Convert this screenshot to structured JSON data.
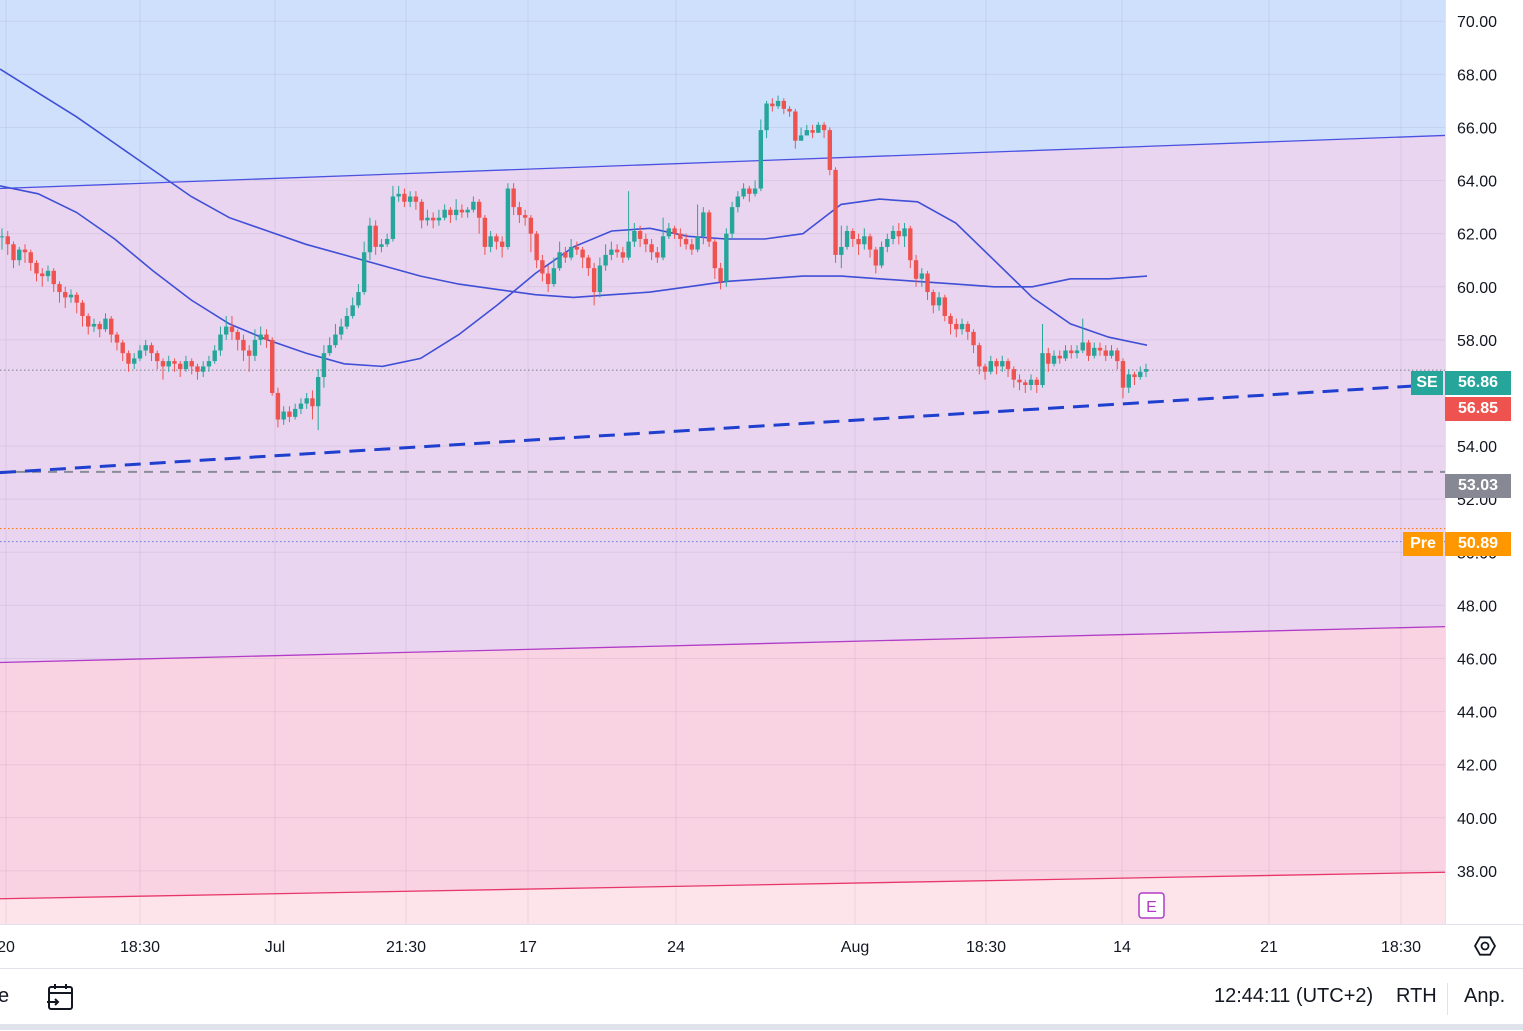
{
  "chart_data": {
    "type": "candlestick",
    "y_axis": {
      "ylim": [
        36.0,
        70.8
      ],
      "ticks": [
        "70.00",
        "68.00",
        "66.00",
        "64.00",
        "62.00",
        "60.00",
        "58.00",
        "54.00",
        "52.00",
        "50.00",
        "48.00",
        "46.00",
        "44.00",
        "42.00",
        "40.00",
        "38.00"
      ]
    },
    "x_axis": {
      "ticks": [
        "20",
        "18:30",
        "Jul",
        "21:30",
        "17",
        "24",
        "Aug",
        "18:30",
        "14",
        "21",
        "18:30"
      ]
    },
    "grid": true,
    "bands": [
      {
        "name": "upper-zone",
        "color": "#cfe0fd"
      },
      {
        "name": "middle-zone",
        "color": "#ead5f0"
      },
      {
        "name": "lower-zone",
        "color": "#f9d3e1"
      },
      {
        "name": "bottom-zone",
        "color": "#fce4ea"
      }
    ],
    "channel_lines": [
      {
        "name": "upper",
        "color": "#4a52e0",
        "start": 63.7,
        "end": 65.7
      },
      {
        "name": "middle",
        "color": "#b03cc8",
        "start": 45.85,
        "end": 47.2
      },
      {
        "name": "lower",
        "color": "#e8366b",
        "start": 36.95,
        "end": 37.95
      }
    ],
    "trendline_dashed": {
      "color": "#1f3fcf",
      "start": 53.0,
      "end": 56.3
    },
    "horizontal_lines": [
      {
        "name": "gray-dashed",
        "value": 53.03,
        "color": "#8a8d97"
      },
      {
        "name": "pre-dotted",
        "value": 50.89,
        "color": "#ff6d00"
      },
      {
        "name": "blue-dotted",
        "value": 50.4,
        "color": "#6b7bd6"
      },
      {
        "name": "last-dotted",
        "value": 56.86,
        "color": "#7a7d85"
      }
    ],
    "candles": [
      [
        61.9,
        61.9,
        62.2,
        61.4
      ],
      [
        61.9,
        61.6,
        62.1,
        61.2
      ],
      [
        61.6,
        61.0,
        61.7,
        60.7
      ],
      [
        61.0,
        61.4,
        61.5,
        60.8
      ],
      [
        61.4,
        61.3,
        61.6,
        60.9
      ],
      [
        61.3,
        60.9,
        61.4,
        60.6
      ],
      [
        60.9,
        60.5,
        61.0,
        60.2
      ],
      [
        60.5,
        60.4,
        60.7,
        60.0
      ],
      [
        60.4,
        60.6,
        60.8,
        60.2
      ],
      [
        60.6,
        60.1,
        60.7,
        59.8
      ],
      [
        60.1,
        59.8,
        60.2,
        59.4
      ],
      [
        59.8,
        59.6,
        60.0,
        59.2
      ],
      [
        59.6,
        59.7,
        59.9,
        59.4
      ],
      [
        59.7,
        59.4,
        59.8,
        59.0
      ],
      [
        59.4,
        58.9,
        59.5,
        58.5
      ],
      [
        58.9,
        58.5,
        59.0,
        58.2
      ],
      [
        58.5,
        58.6,
        58.8,
        58.3
      ],
      [
        58.6,
        58.4,
        58.7,
        58.1
      ],
      [
        58.4,
        58.8,
        59.0,
        58.3
      ],
      [
        58.8,
        58.2,
        58.9,
        57.9
      ],
      [
        58.2,
        57.9,
        58.3,
        57.6
      ],
      [
        57.9,
        57.5,
        58.0,
        57.2
      ],
      [
        57.5,
        57.1,
        57.6,
        56.8
      ],
      [
        57.1,
        57.3,
        57.5,
        56.9
      ],
      [
        57.3,
        57.6,
        57.8,
        57.2
      ],
      [
        57.6,
        57.8,
        58.0,
        57.4
      ],
      [
        57.8,
        57.5,
        57.9,
        57.2
      ],
      [
        57.5,
        57.2,
        57.6,
        56.9
      ],
      [
        57.2,
        57.0,
        57.3,
        56.5
      ],
      [
        57.0,
        57.2,
        57.4,
        56.8
      ],
      [
        57.2,
        57.1,
        57.3,
        56.8
      ],
      [
        57.1,
        56.9,
        57.2,
        56.6
      ],
      [
        56.9,
        57.2,
        57.4,
        56.8
      ],
      [
        57.2,
        57.0,
        57.3,
        56.7
      ],
      [
        57.0,
        56.8,
        57.1,
        56.5
      ],
      [
        56.8,
        57.0,
        57.2,
        56.6
      ],
      [
        57.0,
        57.2,
        57.4,
        56.8
      ],
      [
        57.2,
        57.6,
        57.8,
        57.1
      ],
      [
        57.6,
        58.2,
        58.5,
        57.4
      ],
      [
        58.2,
        58.5,
        58.9,
        58.0
      ],
      [
        58.5,
        58.3,
        58.9,
        58.0
      ],
      [
        58.3,
        58.0,
        58.4,
        57.6
      ],
      [
        58.0,
        57.6,
        58.2,
        57.2
      ],
      [
        57.6,
        57.4,
        57.8,
        56.8
      ],
      [
        57.4,
        58.0,
        58.4,
        57.2
      ],
      [
        58.0,
        58.2,
        58.5,
        57.8
      ],
      [
        58.2,
        58.0,
        58.4,
        57.7
      ],
      [
        58.0,
        56.0,
        58.1,
        55.9
      ],
      [
        56.0,
        55.0,
        56.2,
        54.7
      ],
      [
        55.0,
        55.3,
        55.5,
        54.8
      ],
      [
        55.3,
        55.1,
        55.5,
        54.9
      ],
      [
        55.1,
        55.4,
        55.6,
        55.0
      ],
      [
        55.4,
        55.6,
        55.8,
        55.2
      ],
      [
        55.6,
        55.8,
        56.0,
        55.4
      ],
      [
        55.8,
        55.5,
        56.1,
        55.0
      ],
      [
        55.5,
        56.6,
        56.9,
        54.6
      ],
      [
        56.6,
        57.5,
        57.8,
        56.2
      ],
      [
        57.5,
        57.8,
        58.1,
        57.4
      ],
      [
        57.8,
        58.2,
        58.6,
        57.7
      ],
      [
        58.2,
        58.5,
        58.8,
        58.0
      ],
      [
        58.5,
        58.9,
        59.2,
        58.4
      ],
      [
        58.9,
        59.3,
        59.6,
        58.8
      ],
      [
        59.3,
        59.8,
        60.1,
        59.2
      ],
      [
        59.8,
        61.3,
        61.7,
        59.7
      ],
      [
        61.3,
        62.3,
        62.6,
        61.0
      ],
      [
        62.3,
        61.5,
        62.5,
        61.2
      ],
      [
        61.5,
        61.6,
        61.8,
        61.3
      ],
      [
        61.6,
        61.8,
        62.0,
        61.5
      ],
      [
        61.8,
        63.4,
        63.8,
        61.7
      ],
      [
        63.4,
        63.5,
        63.8,
        63.2
      ],
      [
        63.5,
        63.2,
        63.7,
        63.0
      ],
      [
        63.2,
        63.4,
        63.6,
        63.0
      ],
      [
        63.4,
        63.2,
        63.6,
        62.9
      ],
      [
        63.2,
        62.5,
        63.3,
        62.2
      ],
      [
        62.5,
        62.6,
        62.9,
        62.3
      ],
      [
        62.6,
        62.5,
        62.8,
        62.2
      ],
      [
        62.5,
        62.6,
        62.9,
        62.3
      ],
      [
        62.6,
        62.9,
        63.1,
        62.5
      ],
      [
        62.9,
        62.7,
        63.0,
        62.4
      ],
      [
        62.7,
        62.9,
        63.3,
        62.5
      ],
      [
        62.9,
        62.8,
        63.1,
        62.6
      ],
      [
        62.8,
        62.9,
        63.0,
        62.6
      ],
      [
        62.9,
        63.2,
        63.4,
        62.8
      ],
      [
        63.2,
        62.6,
        63.3,
        62.0
      ],
      [
        62.6,
        61.5,
        62.7,
        61.2
      ],
      [
        61.5,
        61.9,
        62.1,
        61.3
      ],
      [
        61.9,
        61.7,
        62.0,
        61.4
      ],
      [
        61.7,
        61.5,
        61.9,
        61.1
      ],
      [
        61.5,
        63.7,
        63.9,
        61.4
      ],
      [
        63.7,
        63.0,
        63.9,
        62.7
      ],
      [
        63.0,
        62.7,
        63.2,
        62.4
      ],
      [
        62.7,
        62.6,
        62.9,
        62.3
      ],
      [
        62.6,
        62.0,
        62.7,
        61.3
      ],
      [
        62.0,
        61.0,
        62.1,
        60.7
      ],
      [
        61.0,
        60.5,
        61.2,
        60.2
      ],
      [
        60.5,
        60.1,
        60.8,
        59.8
      ],
      [
        60.1,
        60.7,
        61.1,
        60.0
      ],
      [
        60.7,
        61.3,
        61.7,
        60.6
      ],
      [
        61.3,
        61.1,
        61.5,
        60.9
      ],
      [
        61.1,
        61.5,
        61.8,
        61.0
      ],
      [
        61.5,
        61.4,
        61.7,
        61.2
      ],
      [
        61.4,
        61.1,
        61.5,
        60.7
      ],
      [
        61.1,
        60.7,
        61.2,
        60.4
      ],
      [
        60.7,
        59.8,
        60.9,
        59.3
      ],
      [
        59.8,
        60.8,
        61.1,
        59.6
      ],
      [
        60.8,
        61.2,
        61.6,
        60.6
      ],
      [
        61.2,
        61.4,
        61.7,
        61.0
      ],
      [
        61.4,
        61.3,
        61.6,
        61.1
      ],
      [
        61.3,
        61.1,
        61.5,
        60.9
      ],
      [
        61.1,
        61.7,
        63.6,
        61.0
      ],
      [
        61.7,
        62.1,
        62.4,
        61.5
      ],
      [
        62.1,
        61.8,
        62.3,
        61.5
      ],
      [
        61.8,
        61.6,
        62.0,
        61.3
      ],
      [
        61.6,
        61.3,
        61.8,
        61.0
      ],
      [
        61.3,
        61.1,
        61.5,
        60.9
      ],
      [
        61.1,
        61.9,
        62.6,
        61.0
      ],
      [
        61.9,
        62.2,
        62.4,
        61.8
      ],
      [
        62.2,
        62.0,
        62.3,
        61.8
      ],
      [
        62.0,
        61.8,
        62.2,
        61.5
      ],
      [
        61.8,
        61.6,
        62.0,
        61.4
      ],
      [
        61.6,
        61.4,
        61.8,
        61.2
      ],
      [
        61.4,
        61.9,
        63.1,
        61.3
      ],
      [
        61.9,
        62.8,
        63.0,
        61.6
      ],
      [
        62.8,
        61.7,
        62.9,
        61.5
      ],
      [
        61.7,
        60.7,
        61.8,
        60.3
      ],
      [
        60.7,
        60.2,
        60.9,
        59.9
      ],
      [
        60.2,
        62.0,
        62.2,
        60.0
      ],
      [
        62.0,
        63.0,
        63.2,
        61.8
      ],
      [
        63.0,
        63.4,
        63.6,
        62.8
      ],
      [
        63.4,
        63.7,
        63.9,
        63.3
      ],
      [
        63.7,
        63.5,
        63.8,
        63.2
      ],
      [
        63.5,
        63.7,
        64.0,
        63.4
      ],
      [
        63.7,
        65.9,
        66.3,
        63.6
      ],
      [
        65.9,
        66.9,
        67.0,
        65.6
      ],
      [
        66.9,
        66.8,
        67.1,
        66.6
      ],
      [
        66.8,
        67.0,
        67.2,
        66.7
      ],
      [
        67.0,
        66.7,
        67.1,
        66.5
      ],
      [
        66.7,
        66.6,
        66.8,
        66.4
      ],
      [
        66.6,
        65.5,
        66.7,
        65.2
      ],
      [
        65.5,
        65.7,
        66.0,
        65.5
      ],
      [
        65.7,
        65.9,
        66.1,
        65.7
      ],
      [
        65.9,
        65.8,
        66.1,
        65.6
      ],
      [
        65.8,
        66.1,
        66.2,
        65.8
      ],
      [
        66.1,
        65.9,
        66.2,
        65.6
      ],
      [
        65.9,
        64.4,
        66.0,
        64.2
      ],
      [
        64.4,
        61.2,
        64.5,
        60.9
      ],
      [
        61.2,
        61.5,
        62.3,
        60.7
      ],
      [
        61.5,
        62.1,
        62.3,
        61.4
      ],
      [
        62.1,
        61.8,
        62.2,
        61.5
      ],
      [
        61.8,
        61.6,
        62.0,
        61.2
      ],
      [
        61.6,
        61.9,
        62.2,
        61.4
      ],
      [
        61.9,
        61.4,
        62.0,
        61.1
      ],
      [
        61.4,
        60.8,
        61.5,
        60.5
      ],
      [
        60.8,
        61.5,
        61.7,
        60.7
      ],
      [
        61.5,
        61.8,
        62.0,
        61.3
      ],
      [
        61.8,
        62.1,
        62.3,
        61.6
      ],
      [
        62.1,
        61.9,
        62.4,
        61.6
      ],
      [
        61.9,
        62.2,
        62.4,
        61.5
      ],
      [
        62.2,
        61.0,
        62.3,
        60.7
      ],
      [
        61.0,
        60.3,
        61.2,
        60.0
      ],
      [
        60.3,
        60.5,
        60.7,
        60.0
      ],
      [
        60.5,
        59.8,
        60.6,
        59.5
      ],
      [
        59.8,
        59.3,
        59.9,
        59.0
      ],
      [
        59.3,
        59.6,
        59.8,
        59.1
      ],
      [
        59.6,
        58.9,
        59.7,
        58.7
      ],
      [
        58.9,
        58.6,
        59.0,
        58.2
      ],
      [
        58.6,
        58.4,
        58.8,
        58.1
      ],
      [
        58.4,
        58.6,
        58.8,
        58.2
      ],
      [
        58.6,
        58.3,
        58.7,
        58.0
      ],
      [
        58.3,
        57.8,
        58.4,
        57.5
      ],
      [
        57.8,
        57.0,
        57.9,
        56.7
      ],
      [
        57.0,
        56.8,
        57.1,
        56.5
      ],
      [
        56.8,
        57.2,
        57.4,
        56.7
      ],
      [
        57.2,
        57.0,
        57.3,
        56.7
      ],
      [
        57.0,
        57.2,
        57.4,
        56.8
      ],
      [
        57.2,
        56.9,
        57.3,
        56.6
      ],
      [
        56.9,
        56.5,
        57.0,
        56.2
      ],
      [
        56.5,
        56.4,
        56.7,
        56.1
      ],
      [
        56.4,
        56.3,
        56.5,
        56.0
      ],
      [
        56.3,
        56.5,
        56.7,
        56.1
      ],
      [
        56.5,
        56.3,
        56.6,
        56.0
      ],
      [
        56.3,
        57.5,
        58.6,
        56.2
      ],
      [
        57.5,
        57.1,
        57.7,
        56.8
      ],
      [
        57.1,
        57.4,
        57.6,
        57.0
      ],
      [
        57.4,
        57.3,
        57.6,
        57.1
      ],
      [
        57.3,
        57.6,
        57.8,
        57.2
      ],
      [
        57.6,
        57.5,
        57.8,
        57.3
      ],
      [
        57.5,
        57.6,
        57.8,
        57.3
      ],
      [
        57.6,
        57.9,
        58.8,
        57.5
      ],
      [
        57.9,
        57.4,
        58.0,
        57.2
      ],
      [
        57.4,
        57.7,
        57.9,
        57.3
      ],
      [
        57.7,
        57.6,
        57.9,
        57.4
      ],
      [
        57.6,
        57.4,
        57.8,
        57.2
      ],
      [
        57.4,
        57.6,
        57.8,
        57.3
      ],
      [
        57.6,
        57.2,
        57.7,
        56.9
      ],
      [
        57.2,
        56.2,
        57.3,
        55.8
      ],
      [
        56.2,
        56.7,
        56.9,
        56.0
      ],
      [
        56.7,
        56.6,
        56.8,
        56.3
      ],
      [
        56.6,
        56.8,
        57.0,
        56.5
      ],
      [
        56.8,
        56.9,
        57.1,
        56.6
      ]
    ],
    "ma_long": [
      68.2,
      67.3,
      66.4,
      65.4,
      64.4,
      63.4,
      62.6,
      62.1,
      61.6,
      61.2,
      60.8,
      60.4,
      60.1,
      59.9,
      59.7,
      59.6,
      59.7,
      59.8,
      60.0,
      60.2,
      60.3,
      60.4,
      60.4,
      60.3,
      60.2,
      60.1,
      60.0,
      60.0,
      60.3,
      60.3,
      60.4
    ],
    "ma_short": [
      63.8,
      63.5,
      62.8,
      61.8,
      60.6,
      59.5,
      58.6,
      58.0,
      57.5,
      57.1,
      57.0,
      57.3,
      58.2,
      59.3,
      60.5,
      61.5,
      62.1,
      62.2,
      61.9,
      61.8,
      61.8,
      62.0,
      63.1,
      63.3,
      63.2,
      62.4,
      61.0,
      59.6,
      58.6,
      58.1,
      57.8
    ]
  },
  "price_tags": {
    "se_label": "SE",
    "last_price": "56.86",
    "close_price": "56.85",
    "line_price": "53.03",
    "pre_label": "Pre",
    "pre_price": "50.89"
  },
  "event_marker": {
    "label": "E"
  },
  "bottom_bar": {
    "left_text": "e",
    "clock": "12:44:11 (UTC+2)",
    "session": "RTH",
    "scale": "Anp."
  },
  "colors": {
    "up": "#26a69a",
    "down": "#ef5350",
    "ma": "#3f4fd6",
    "se_tag": "#26a69a",
    "pre_tag": "#ff9800",
    "line_tag": "#868993"
  },
  "icons": {
    "calendar": "calendar-range-icon",
    "settings": "gear-icon"
  }
}
